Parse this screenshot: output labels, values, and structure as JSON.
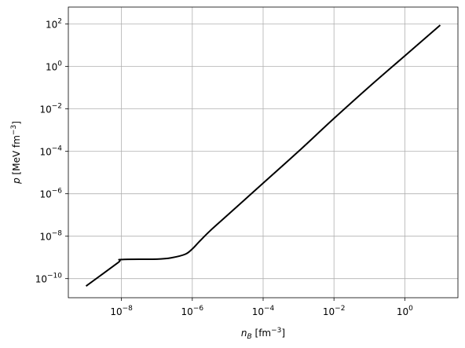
{
  "chart_data": {
    "type": "line",
    "title": "",
    "xlabel": {
      "base": "n",
      "sub": "B",
      "unit_text": "[fm",
      "unit_exp": "−3",
      "unit_close": "]"
    },
    "ylabel": {
      "base": "p",
      "unit_text": "[MeV fm",
      "unit_exp": "−3",
      "unit_close": "]"
    },
    "xscale": "log",
    "yscale": "log",
    "xlim_exp": [
      -9.5,
      1.5
    ],
    "ylim_exp": [
      -10.9,
      2.8
    ],
    "xticks": [
      {
        "base": "10",
        "exp": "−8"
      },
      {
        "base": "10",
        "exp": "−6"
      },
      {
        "base": "10",
        "exp": "−4"
      },
      {
        "base": "10",
        "exp": "−2"
      },
      {
        "base": "10",
        "exp": "0"
      }
    ],
    "xtick_exps": [
      -8,
      -6,
      -4,
      -2,
      0
    ],
    "yticks": [
      {
        "base": "10",
        "exp": "−10"
      },
      {
        "base": "10",
        "exp": "−8"
      },
      {
        "base": "10",
        "exp": "−6"
      },
      {
        "base": "10",
        "exp": "−4"
      },
      {
        "base": "10",
        "exp": "−2"
      },
      {
        "base": "10",
        "exp": "0"
      },
      {
        "base": "10",
        "exp": "2"
      }
    ],
    "ytick_exps": [
      -10,
      -8,
      -6,
      -4,
      -2,
      0,
      2
    ],
    "grid": true,
    "series": [
      {
        "color": "#000000",
        "x_log10": [
          -9.0,
          -8.1,
          -8.0,
          -7.0,
          -6.6,
          -6.2,
          -6.0,
          -5.8,
          -5.5,
          -5.0,
          -4.0,
          -3.0,
          -2.0,
          -1.0,
          0.0,
          1.0
        ],
        "y_log10": [
          -10.35,
          -9.25,
          -9.1,
          -9.08,
          -9.02,
          -8.85,
          -8.6,
          -8.25,
          -7.75,
          -7.0,
          -5.5,
          -4.0,
          -2.45,
          -0.95,
          0.5,
          1.95
        ]
      }
    ]
  }
}
